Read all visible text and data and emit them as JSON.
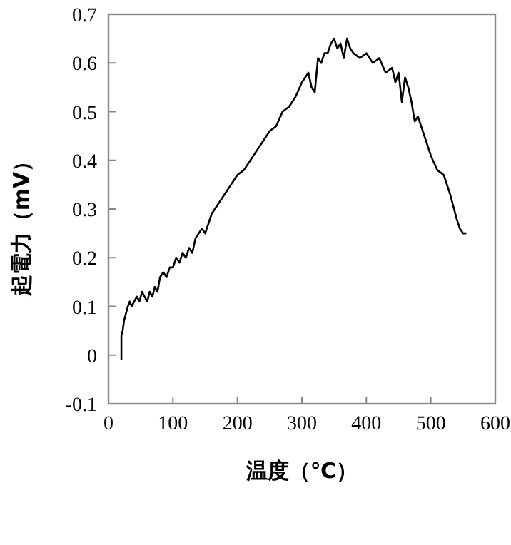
{
  "chart_data": {
    "type": "line",
    "xlabel": "温度（℃）",
    "ylabel": "起電力（mV）",
    "x": [
      20,
      20,
      22,
      24,
      26,
      28,
      30,
      33,
      36,
      40,
      44,
      48,
      52,
      56,
      60,
      64,
      68,
      72,
      76,
      80,
      85,
      90,
      95,
      100,
      105,
      110,
      115,
      120,
      125,
      130,
      135,
      140,
      145,
      150,
      155,
      160,
      170,
      180,
      190,
      200,
      210,
      220,
      230,
      240,
      250,
      260,
      270,
      280,
      290,
      300,
      305,
      310,
      315,
      320,
      325,
      330,
      335,
      340,
      345,
      350,
      355,
      360,
      365,
      370,
      375,
      380,
      390,
      400,
      410,
      420,
      430,
      440,
      445,
      450,
      455,
      460,
      465,
      470,
      475,
      480,
      490,
      500,
      510,
      520,
      530,
      540,
      545,
      550,
      555
    ],
    "series": [
      {
        "color": "#000000",
        "values": [
          -0.01,
          0.04,
          0.05,
          0.07,
          0.08,
          0.09,
          0.1,
          0.11,
          0.1,
          0.11,
          0.12,
          0.11,
          0.13,
          0.12,
          0.11,
          0.13,
          0.12,
          0.14,
          0.13,
          0.16,
          0.17,
          0.16,
          0.18,
          0.18,
          0.2,
          0.19,
          0.21,
          0.2,
          0.22,
          0.21,
          0.24,
          0.25,
          0.26,
          0.25,
          0.27,
          0.29,
          0.31,
          0.33,
          0.35,
          0.37,
          0.38,
          0.4,
          0.42,
          0.44,
          0.46,
          0.47,
          0.5,
          0.51,
          0.53,
          0.56,
          0.57,
          0.58,
          0.55,
          0.54,
          0.61,
          0.6,
          0.62,
          0.62,
          0.64,
          0.65,
          0.63,
          0.64,
          0.61,
          0.65,
          0.63,
          0.62,
          0.61,
          0.62,
          0.6,
          0.61,
          0.58,
          0.59,
          0.56,
          0.58,
          0.52,
          0.57,
          0.55,
          0.52,
          0.48,
          0.49,
          0.45,
          0.41,
          0.38,
          0.37,
          0.33,
          0.28,
          0.26,
          0.25,
          0.25
        ]
      }
    ],
    "xlim": [
      0,
      600
    ],
    "ylim": [
      -0.1,
      0.7
    ],
    "xticks": [
      0,
      100,
      200,
      300,
      400,
      500,
      600
    ],
    "yticks": [
      {
        "value": -0.1,
        "label": "-0.1"
      },
      0,
      0.1,
      0.2,
      0.3,
      0.4,
      0.5,
      0.6,
      0.7
    ],
    "grid": false,
    "marker": "none",
    "line_style": "solid"
  }
}
